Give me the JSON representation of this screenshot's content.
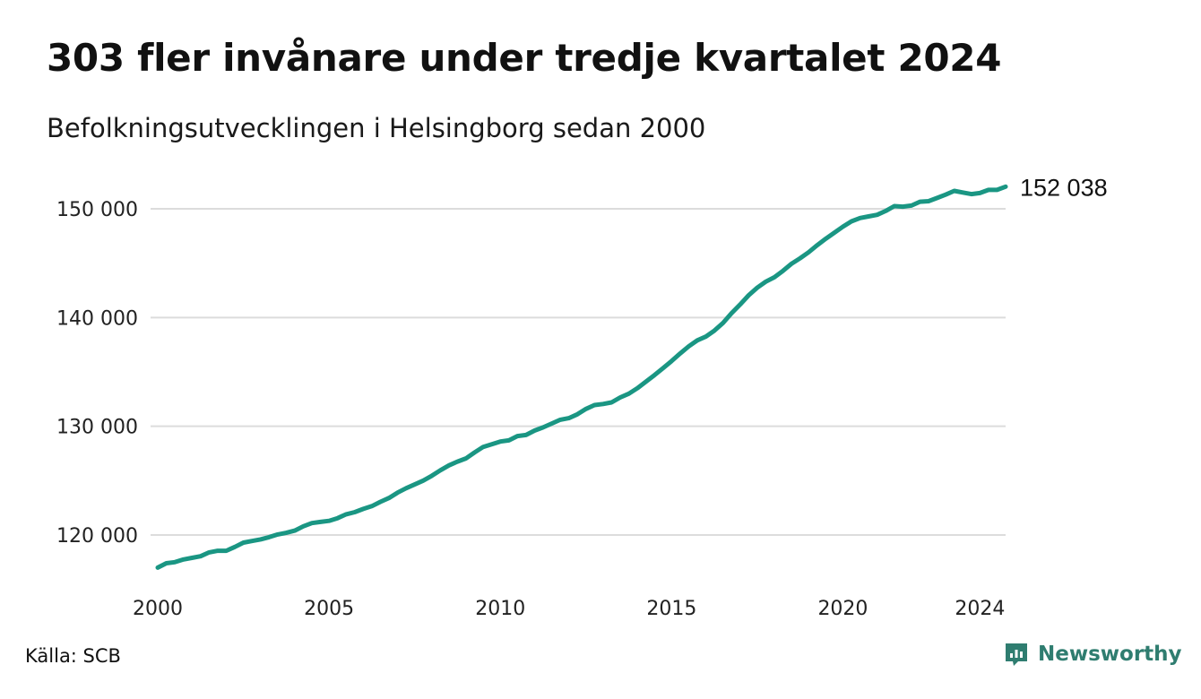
{
  "title": "303 fler invånare under tredje kvartalet 2024",
  "subtitle": "Befolkningsutvecklingen i Helsingborg sedan 2000",
  "source": "Källa: SCB",
  "brand": {
    "name": "Newsworthy",
    "icon": "newsworthy-logo-icon",
    "color": "#2f7d70"
  },
  "chart_data": {
    "type": "line",
    "title": "303 fler invånare under tredje kvartalet 2024",
    "subtitle": "Befolkningsutvecklingen i Helsingborg sedan 2000",
    "xlabel": "",
    "ylabel": "",
    "x_ticks": [
      "2000",
      "2005",
      "2010",
      "2015",
      "2020",
      "2024"
    ],
    "y_ticks": [
      "120 000",
      "130 000",
      "140 000",
      "150 000"
    ],
    "ylim": [
      115000,
      153500
    ],
    "xlim": [
      2000.0,
      2024.75
    ],
    "grid": "horizontal",
    "line_color": "#1a9683",
    "end_label": "152 038",
    "series": [
      {
        "x": [
          2000.0,
          2000.25,
          2000.5,
          2000.75,
          2001.0,
          2001.25,
          2001.5,
          2001.75,
          2002.0,
          2002.25,
          2002.5,
          2002.75,
          2003.0,
          2003.25,
          2003.5,
          2003.75,
          2004.0,
          2004.25,
          2004.5,
          2004.75,
          2005.0,
          2005.25,
          2005.5,
          2005.75,
          2006.0,
          2006.25,
          2006.5,
          2006.75,
          2007.0,
          2007.25,
          2007.5,
          2007.75,
          2008.0,
          2008.25,
          2008.5,
          2008.75,
          2009.0,
          2009.25,
          2009.5,
          2009.75,
          2010.0,
          2010.25,
          2010.5,
          2010.75,
          2011.0,
          2011.25,
          2011.5,
          2011.75,
          2012.0,
          2012.25,
          2012.5,
          2012.75,
          2013.0,
          2013.25,
          2013.5,
          2013.75,
          2014.0,
          2014.25,
          2014.5,
          2014.75,
          2015.0,
          2015.25,
          2015.5,
          2015.75,
          2016.0,
          2016.25,
          2016.5,
          2016.75,
          2017.0,
          2017.25,
          2017.5,
          2017.75,
          2018.0,
          2018.25,
          2018.5,
          2018.75,
          2019.0,
          2019.25,
          2019.5,
          2019.75,
          2020.0,
          2020.25,
          2020.5,
          2020.75,
          2021.0,
          2021.25,
          2021.5,
          2021.75,
          2022.0,
          2022.25,
          2022.5,
          2022.75,
          2023.0,
          2023.25,
          2023.5,
          2023.75,
          2024.0,
          2024.25,
          2024.5,
          2024.75
        ],
        "values": [
          117000,
          117400,
          117500,
          117750,
          117900,
          118050,
          118400,
          118550,
          118550,
          118900,
          119300,
          119450,
          119600,
          119800,
          120050,
          120200,
          120400,
          120800,
          121100,
          121200,
          121300,
          121550,
          121900,
          122100,
          122400,
          122650,
          123050,
          123400,
          123900,
          124300,
          124650,
          125000,
          125450,
          125950,
          126400,
          126750,
          127050,
          127600,
          128100,
          128350,
          128600,
          128700,
          129100,
          129200,
          129600,
          129900,
          130250,
          130600,
          130750,
          131100,
          131600,
          131950,
          132050,
          132200,
          132650,
          133000,
          133500,
          134100,
          134700,
          135350,
          136000,
          136700,
          137350,
          137900,
          138250,
          138800,
          139500,
          140400,
          141200,
          142050,
          142750,
          143300,
          143700,
          144300,
          144950,
          145450,
          146000,
          146650,
          147250,
          147800,
          148350,
          148850,
          149150,
          149300,
          149450,
          149800,
          150250,
          150200,
          150300,
          150650,
          150700,
          151000,
          151300,
          151650,
          151500,
          151350,
          151450,
          151735,
          151735,
          152038
        ]
      }
    ]
  }
}
